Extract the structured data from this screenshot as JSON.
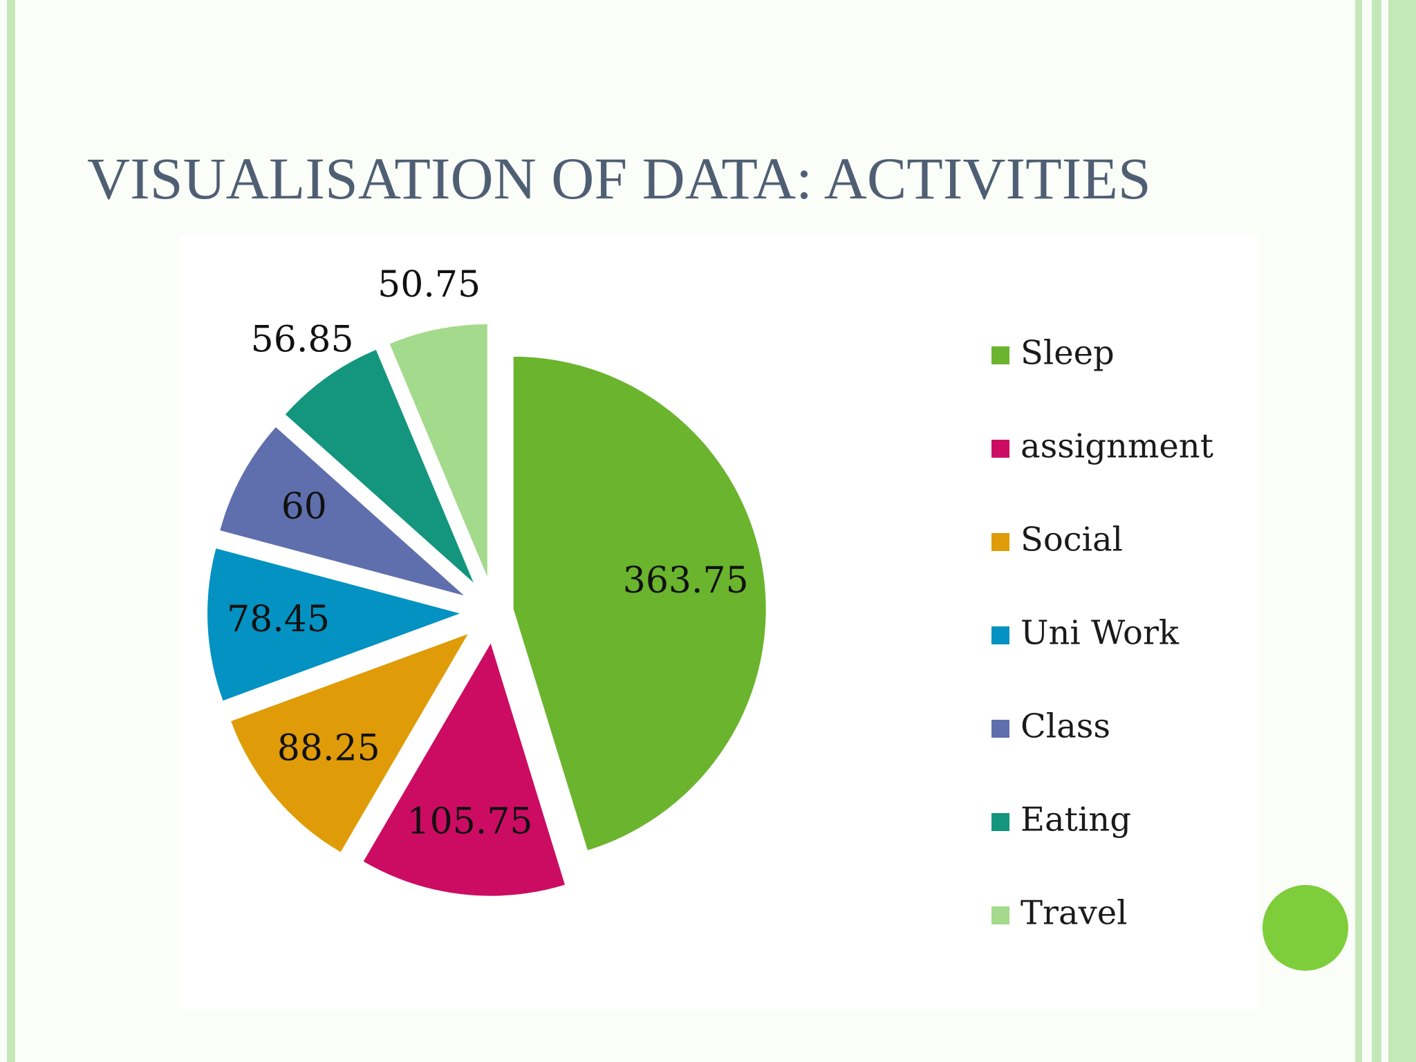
{
  "slide": {
    "title": "VISUALISATION OF DATA: ACTIVITIES"
  },
  "chart_data": {
    "type": "pie",
    "title": "",
    "categories": [
      "Sleep",
      "assignment",
      "Social",
      "Uni Work",
      "Class",
      "Eating",
      "Travel"
    ],
    "values": [
      363.75,
      105.75,
      88.25,
      78.45,
      60,
      56.85,
      50.75
    ],
    "data_labels": [
      "363.75",
      "105.75",
      "88.25",
      "78.45",
      "60",
      "56.85",
      "50.75"
    ],
    "colors": [
      "#6ab42e",
      "#cc0c62",
      "#df9c08",
      "#0392c2",
      "#5f6fae",
      "#13967d",
      "#a3da8b"
    ],
    "exploded": true,
    "start_angle": "12 o'clock",
    "direction": "clockwise",
    "legend": {
      "position": "right",
      "entries": [
        "Sleep",
        "assignment",
        "Social",
        "Uni Work",
        "Class",
        "Eating",
        "Travel"
      ]
    }
  },
  "decoration": {
    "accent_color": "#7dce3a",
    "border_color": "#c5e8b8",
    "title_color": "#4f5f73"
  }
}
